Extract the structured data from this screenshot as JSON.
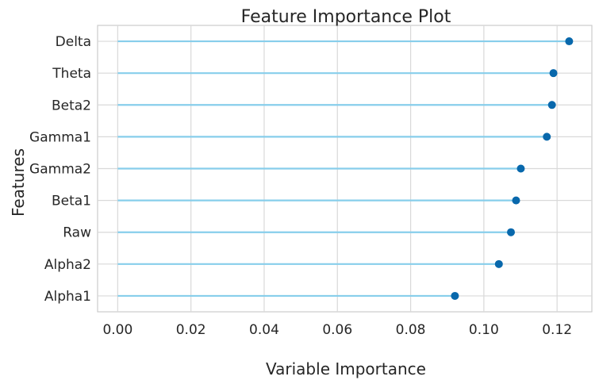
{
  "chart_data": {
    "type": "lollipop",
    "title": "Feature Importance Plot",
    "xlabel": "Variable Importance",
    "ylabel": "Features",
    "categories": [
      "Delta",
      "Theta",
      "Beta2",
      "Gamma1",
      "Gamma2",
      "Beta1",
      "Raw",
      "Alpha2",
      "Alpha1"
    ],
    "values": [
      0.1233,
      0.119,
      0.1186,
      0.1172,
      0.1101,
      0.1088,
      0.1074,
      0.1041,
      0.0921
    ],
    "xlim": [
      -0.0055,
      0.1295
    ],
    "xticks": [
      "0.00",
      "0.02",
      "0.04",
      "0.06",
      "0.08",
      "0.10",
      "0.12"
    ],
    "grid": true,
    "colors": {
      "stem": "#87ceeb",
      "marker": "#0868ac",
      "grid": "#d9d9d9",
      "frame": "#cccccc",
      "text": "#262626"
    }
  }
}
